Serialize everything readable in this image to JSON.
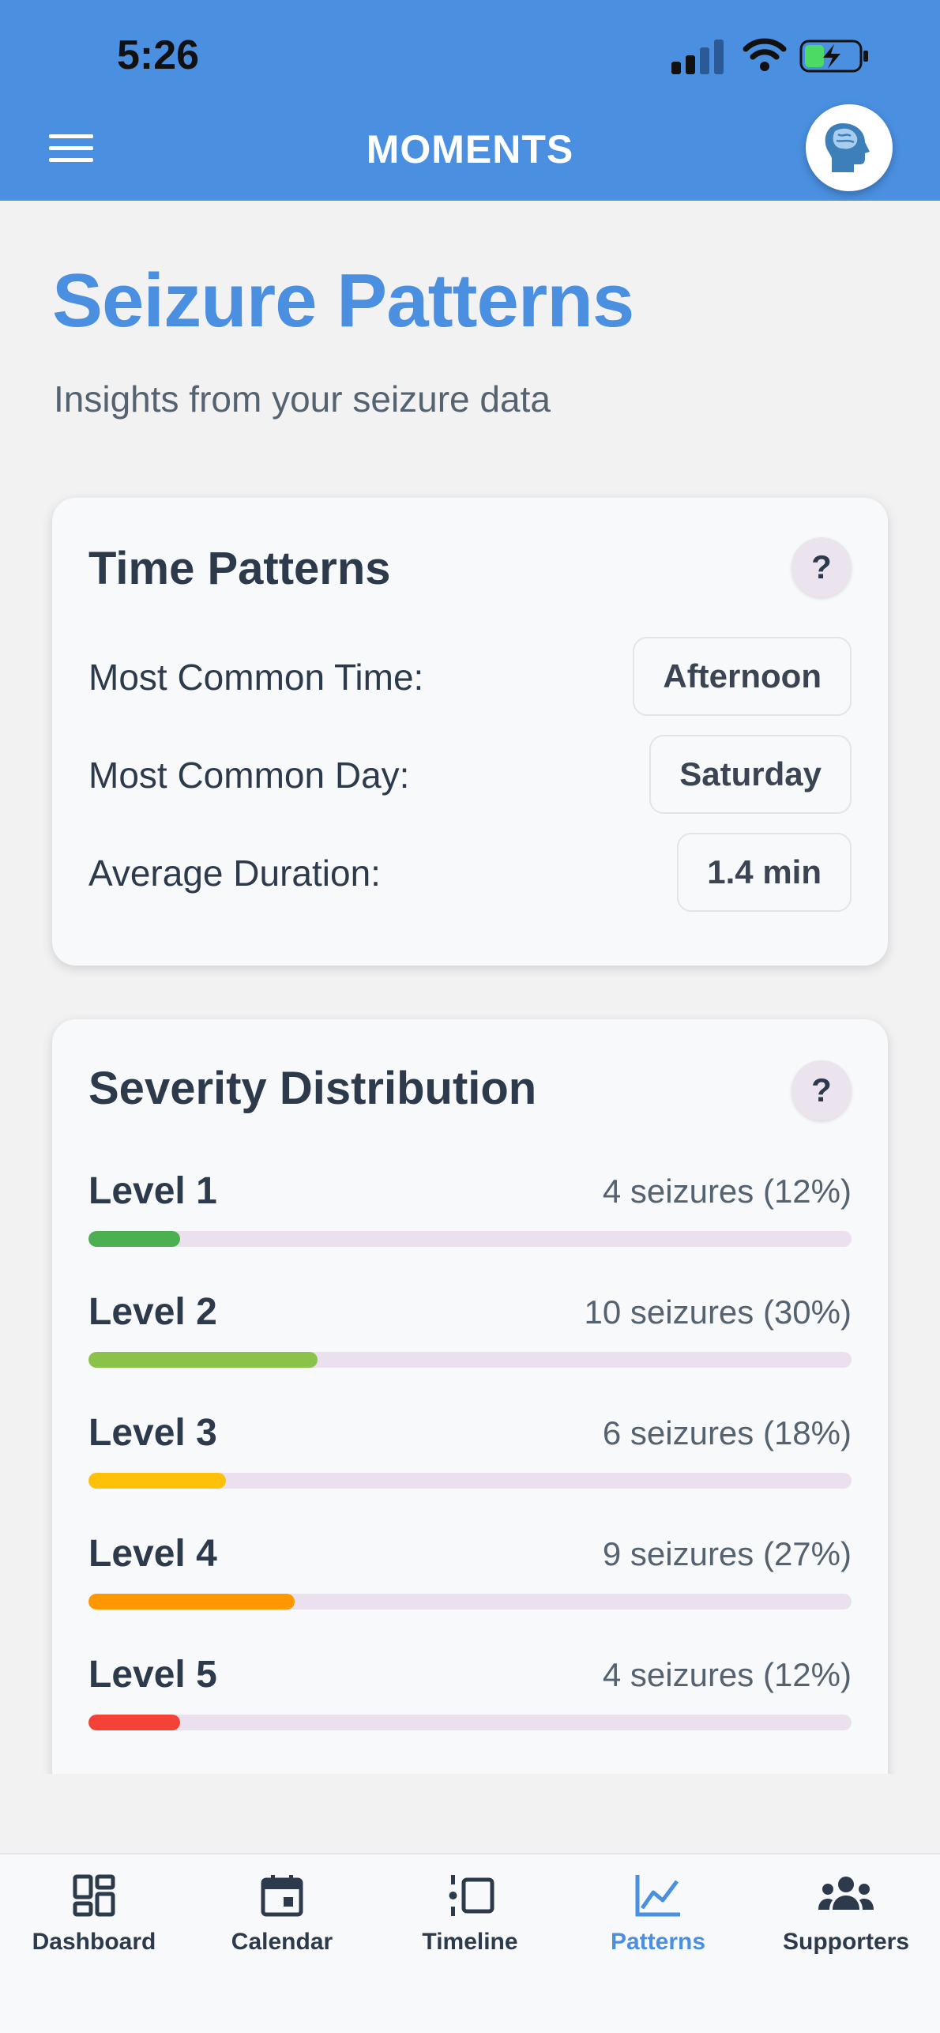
{
  "status_bar": {
    "time": "5:26"
  },
  "header": {
    "title": "MOMENTS"
  },
  "page": {
    "title": "Seizure Patterns",
    "subtitle": "Insights from your seizure data"
  },
  "time_patterns": {
    "title": "Time Patterns",
    "help": "?",
    "rows": [
      {
        "label": "Most Common Time:",
        "value": "Afternoon"
      },
      {
        "label": "Most Common Day:",
        "value": "Saturday"
      },
      {
        "label": "Average Duration:",
        "value": "1.4 min"
      }
    ]
  },
  "severity": {
    "title": "Severity Distribution",
    "help": "?",
    "levels": [
      {
        "label": "Level 1",
        "count": "4 seizures (12%)",
        "percent": 12,
        "color": "#4caf50"
      },
      {
        "label": "Level 2",
        "count": "10 seizures (30%)",
        "percent": 30,
        "color": "#8bc34a"
      },
      {
        "label": "Level 3",
        "count": "6 seizures (18%)",
        "percent": 18,
        "color": "#ffc107"
      },
      {
        "label": "Level 4",
        "count": "9 seizures (27%)",
        "percent": 27,
        "color": "#ff9800"
      },
      {
        "label": "Level 5",
        "count": "4 seizures (12%)",
        "percent": 12,
        "color": "#f44336"
      }
    ]
  },
  "tabs": [
    {
      "label": "Dashboard",
      "icon": "dashboard-icon",
      "active": false
    },
    {
      "label": "Calendar",
      "icon": "calendar-icon",
      "active": false
    },
    {
      "label": "Timeline",
      "icon": "timeline-icon",
      "active": false
    },
    {
      "label": "Patterns",
      "icon": "chart-icon",
      "active": true
    },
    {
      "label": "Supporters",
      "icon": "people-icon",
      "active": false
    }
  ],
  "colors": {
    "brand": "#4a8fe0",
    "text": "#2c3a4b",
    "muted": "#556270"
  }
}
